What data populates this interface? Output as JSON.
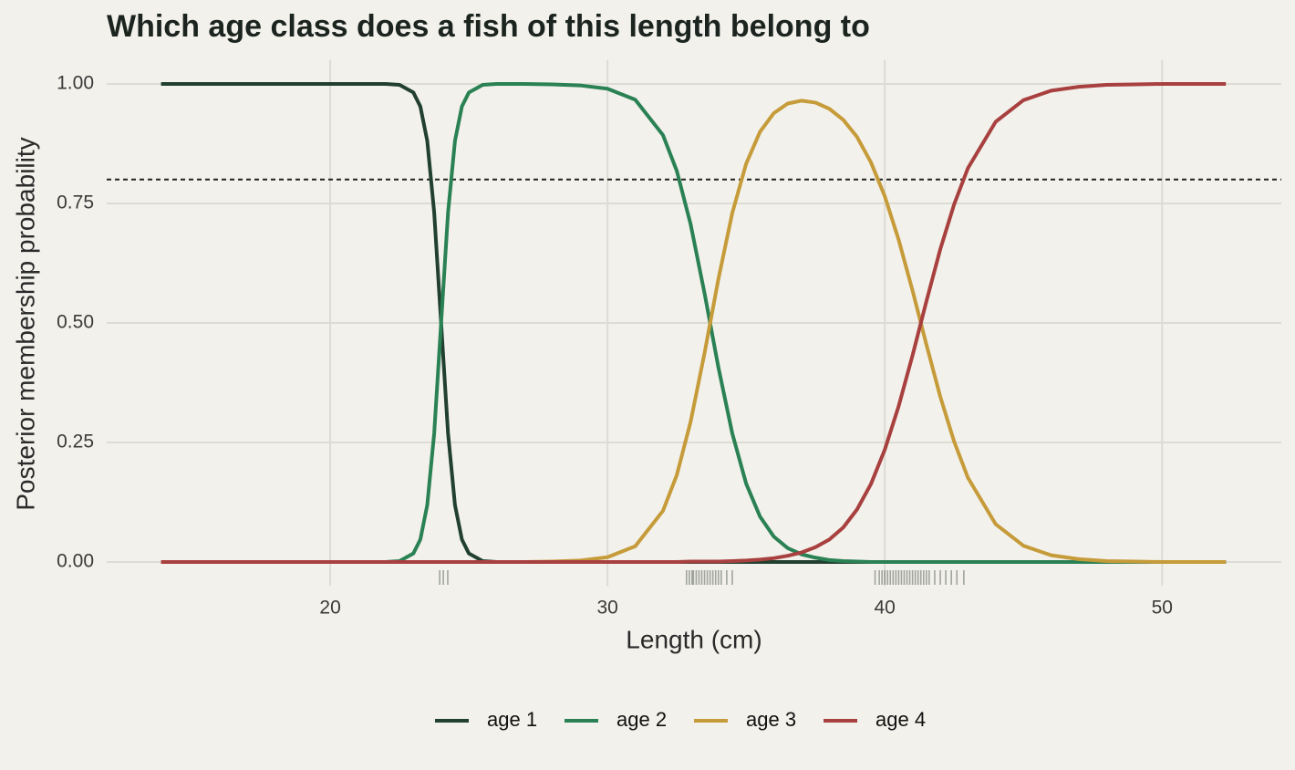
{
  "chart_data": {
    "type": "line",
    "title": "Which age class does a fish of this length belong to",
    "x_label": "Length (cm)",
    "y_label": "Posterior membership probability",
    "x": [
      13.9,
      16,
      18,
      20,
      22,
      22.5,
      23,
      23.25,
      23.5,
      23.75,
      24,
      24.25,
      24.5,
      24.75,
      25,
      25.5,
      26,
      27,
      28,
      29,
      30,
      31,
      32,
      32.5,
      33,
      33.5,
      34,
      34.5,
      35,
      35.5,
      36,
      36.5,
      37,
      37.5,
      38,
      38.5,
      39,
      39.5,
      40,
      40.5,
      41,
      41.5,
      42,
      42.5,
      43,
      44,
      45,
      46,
      47,
      48,
      49,
      50,
      51,
      52,
      52.3
    ],
    "series": [
      {
        "name": "age 1",
        "color": "#22402f",
        "values": [
          1,
          1,
          1,
          1,
          1,
          0.998,
          0.982,
          0.953,
          0.881,
          0.731,
          0.5,
          0.269,
          0.119,
          0.047,
          0.018,
          0.002,
          0,
          0,
          0,
          0,
          0,
          0,
          0,
          0,
          0,
          0,
          0,
          0,
          0,
          0,
          0,
          0,
          0,
          0,
          0,
          0,
          0,
          0,
          0,
          0,
          0,
          0,
          0,
          0,
          0,
          0,
          0,
          0,
          0,
          0,
          0,
          0,
          0,
          0,
          0
        ]
      },
      {
        "name": "age 2",
        "color": "#2a8154",
        "values": [
          0,
          0,
          0,
          0,
          0,
          0.002,
          0.018,
          0.047,
          0.119,
          0.269,
          0.5,
          0.731,
          0.881,
          0.953,
          0.982,
          0.998,
          1,
          1,
          0.999,
          0.997,
          0.99,
          0.967,
          0.893,
          0.818,
          0.706,
          0.562,
          0.407,
          0.269,
          0.164,
          0.095,
          0.053,
          0.029,
          0.016,
          0.009,
          0.004,
          0.002,
          0.001,
          0,
          0,
          0,
          0,
          0,
          0,
          0,
          0,
          0,
          0,
          0,
          0,
          0,
          0,
          0,
          0,
          0,
          0
        ]
      },
      {
        "name": "age 3",
        "color": "#c69b3a",
        "values": [
          0,
          0,
          0,
          0,
          0,
          0,
          0,
          0,
          0,
          0,
          0,
          0,
          0,
          0,
          0,
          0,
          0,
          0,
          0.001,
          0.003,
          0.01,
          0.033,
          0.107,
          0.182,
          0.294,
          0.437,
          0.592,
          0.73,
          0.833,
          0.9,
          0.939,
          0.959,
          0.965,
          0.961,
          0.948,
          0.925,
          0.889,
          0.836,
          0.765,
          0.674,
          0.568,
          0.455,
          0.346,
          0.252,
          0.176,
          0.079,
          0.034,
          0.014,
          0.006,
          0.002,
          0.001,
          0,
          0,
          0,
          0
        ]
      },
      {
        "name": "age 4",
        "color": "#a8403f",
        "values": [
          0,
          0,
          0,
          0,
          0,
          0,
          0,
          0,
          0,
          0,
          0,
          0,
          0,
          0,
          0,
          0,
          0,
          0,
          0,
          0,
          0,
          0,
          0,
          0,
          0.001,
          0.001,
          0.001,
          0.002,
          0.003,
          0.005,
          0.008,
          0.013,
          0.02,
          0.031,
          0.047,
          0.072,
          0.11,
          0.163,
          0.235,
          0.326,
          0.432,
          0.545,
          0.654,
          0.748,
          0.824,
          0.921,
          0.966,
          0.986,
          0.994,
          0.998,
          0.999,
          1,
          1,
          1,
          1
        ]
      }
    ],
    "rug": [
      23.95,
      24.08,
      24.24,
      32.85,
      32.95,
      33.05,
      33.1,
      33.2,
      33.3,
      33.4,
      33.5,
      33.6,
      33.7,
      33.8,
      33.9,
      34.0,
      34.1,
      34.3,
      34.5,
      39.65,
      39.8,
      39.9,
      40.0,
      40.1,
      40.2,
      40.3,
      40.4,
      40.5,
      40.6,
      40.7,
      40.8,
      40.9,
      41.0,
      41.1,
      41.2,
      41.3,
      41.4,
      41.5,
      41.6,
      41.8,
      42.0,
      42.2,
      42.4,
      42.6,
      42.85
    ],
    "hline": 0.8,
    "xlim": [
      11.94,
      54.3
    ],
    "ylim": [
      -0.05,
      1.05
    ],
    "xticks": [
      20,
      30,
      40,
      50
    ],
    "yticks": [
      {
        "value": 0,
        "label": "0.00"
      },
      0.25,
      {
        "value": 0.5,
        "label": "0.50"
      },
      0.75,
      {
        "value": 1,
        "label": "1.00"
      }
    ],
    "grid": true,
    "legend_position": "bottom"
  }
}
